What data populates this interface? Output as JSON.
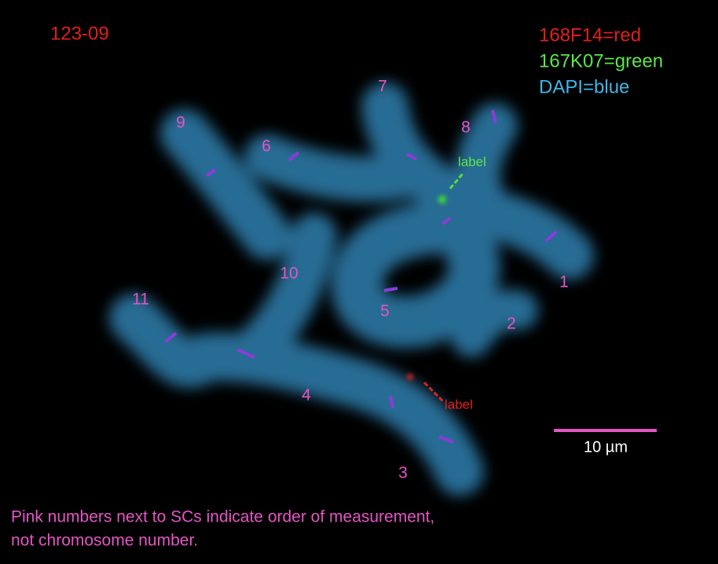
{
  "image": {
    "sample_id": "123-09",
    "legend": [
      "168F14=red",
      "167K07=green",
      "DAPI=blue"
    ],
    "numbers": [
      "1",
      "2",
      "3",
      "4",
      "5",
      "6",
      "7",
      "8",
      "9",
      "10",
      "11"
    ],
    "probe_labels": [
      "label",
      "label"
    ],
    "scale_bar": "10 µm",
    "caption": [
      "Pink numbers next to SCs indicate order of measurement,",
      "not chromosome number."
    ]
  }
}
